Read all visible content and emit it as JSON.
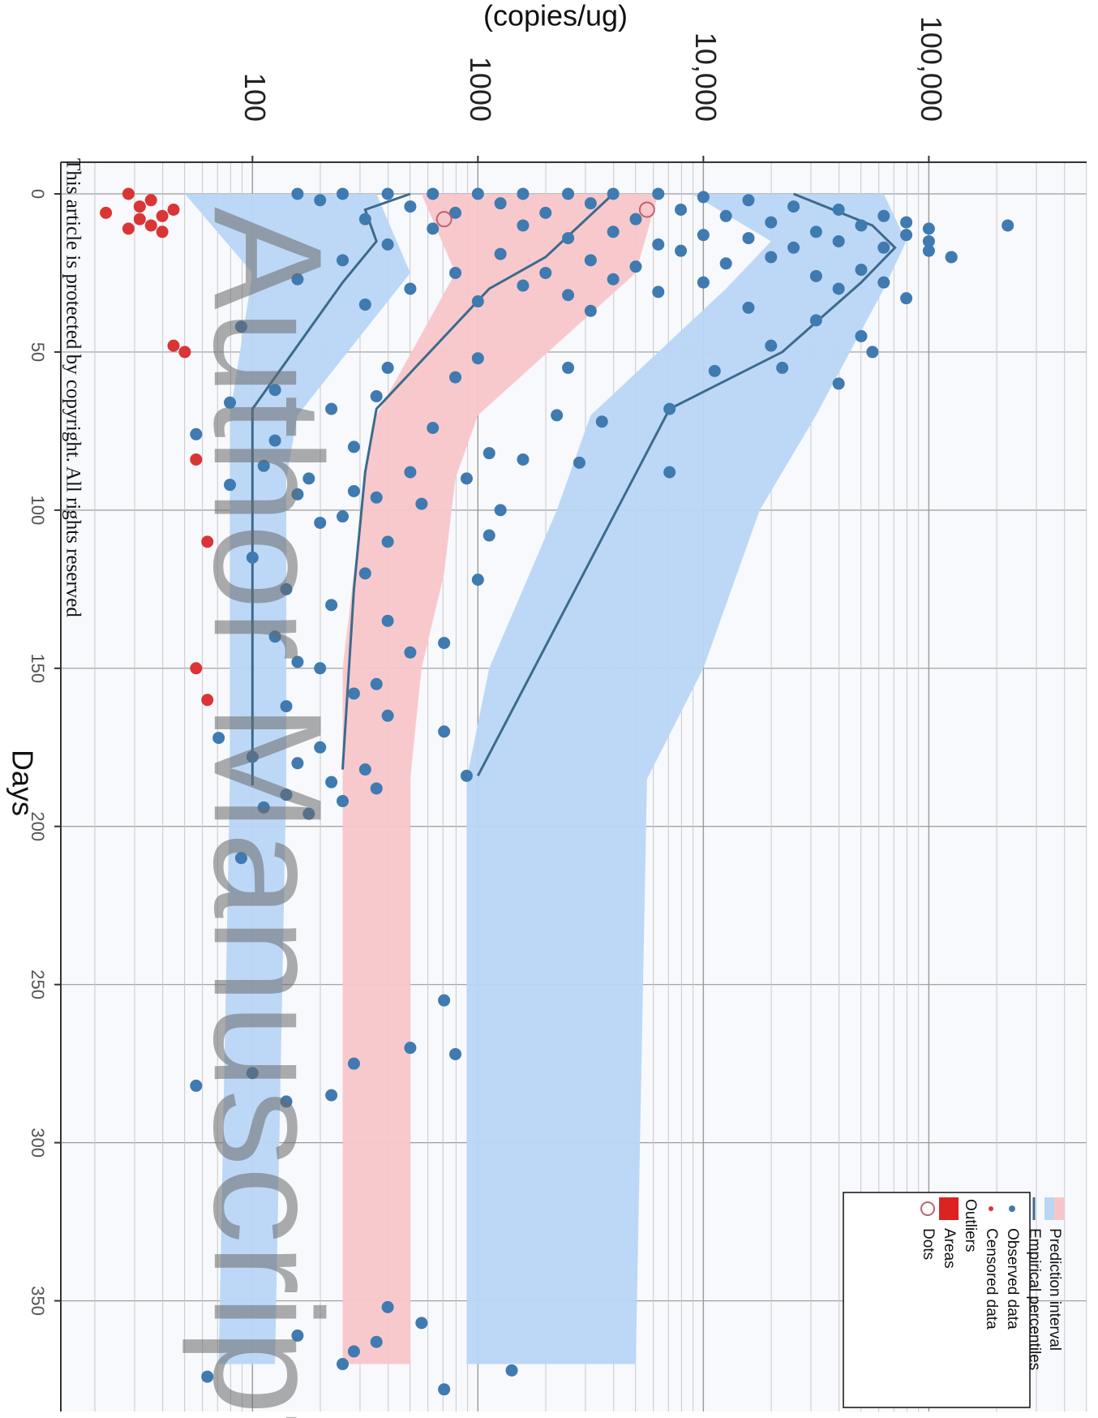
{
  "chart_data": {
    "type": "scatter",
    "title": "",
    "xlabel": "Days",
    "ylabel": "(copies/ug)",
    "xlim": [
      -10,
      385
    ],
    "ylim_log10": [
      1.15,
      5.7
    ],
    "y_scale": "log",
    "grid": true,
    "x_ticks": [
      0,
      50,
      100,
      150,
      200,
      250,
      300,
      350
    ],
    "x_tick_labels": [
      "0",
      "50",
      "100",
      "150",
      "200",
      "250",
      "300",
      "350"
    ],
    "y_tick_labels": [
      {
        "value": 100,
        "label": "100"
      },
      {
        "value": 1000,
        "label": "1000"
      },
      {
        "value": 10000,
        "label": "10,000"
      },
      {
        "value": 100000,
        "label": "100,000"
      }
    ],
    "colors": {
      "pi_blue": "#b9d6f5",
      "pi_red": "#f8c6c9",
      "percentile_line": "#3d6a8e",
      "observed": "#3f7ab0",
      "censored": "#d93535",
      "outlier_area": "#dd2222",
      "outlier_dot": "#c06070",
      "grid": "#9a9a9a",
      "plot_bg": "#f7f9fc"
    },
    "prediction_intervals": [
      {
        "name": "lower",
        "color": "blue",
        "x": [
          0,
          25,
          70,
          90,
          120,
          150,
          185,
          370
        ],
        "lo": [
          1.7,
          2.0,
          1.9,
          1.9,
          1.9,
          1.9,
          1.9,
          1.85
        ],
        "hi": [
          2.55,
          2.7,
          2.2,
          2.15,
          2.15,
          2.15,
          2.15,
          2.1
        ]
      },
      {
        "name": "median",
        "color": "red",
        "x": [
          0,
          25,
          70,
          90,
          120,
          150,
          185,
          370
        ],
        "lo": [
          2.75,
          2.9,
          2.55,
          2.5,
          2.45,
          2.4,
          2.4,
          2.4
        ],
        "hi": [
          3.8,
          3.7,
          3.0,
          2.9,
          2.85,
          2.75,
          2.7,
          2.7
        ]
      },
      {
        "name": "upper",
        "color": "blue",
        "x": [
          0,
          15,
          30,
          70,
          100,
          150,
          185,
          370
        ],
        "lo": [
          3.95,
          4.3,
          4.1,
          3.5,
          3.35,
          3.05,
          2.95,
          2.95
        ],
        "hi": [
          4.8,
          4.9,
          4.8,
          4.5,
          4.25,
          4.0,
          3.75,
          3.7
        ]
      }
    ],
    "empirical_percentiles": [
      {
        "name": "p10",
        "x": [
          0,
          5,
          15,
          28,
          68,
          88,
          130,
          187
        ],
        "y": [
          2.7,
          2.5,
          2.55,
          2.4,
          2.0,
          2.0,
          2.0,
          2.0
        ]
      },
      {
        "name": "p50",
        "x": [
          0,
          10,
          20,
          30,
          68,
          88,
          125,
          182
        ],
        "y": [
          3.6,
          3.45,
          3.3,
          3.05,
          2.55,
          2.5,
          2.45,
          2.4
        ]
      },
      {
        "name": "p90",
        "x": [
          0,
          10,
          17,
          28,
          50,
          68,
          184
        ],
        "y": [
          4.4,
          4.75,
          4.85,
          4.7,
          4.35,
          3.85,
          3.0
        ]
      }
    ],
    "observed_points": [
      [
        0,
        2.2
      ],
      [
        0,
        2.4
      ],
      [
        0,
        2.6
      ],
      [
        0,
        2.8
      ],
      [
        0,
        3.0
      ],
      [
        0,
        3.2
      ],
      [
        0,
        3.4
      ],
      [
        0,
        3.6
      ],
      [
        0,
        3.8
      ],
      [
        1,
        4.0
      ],
      [
        2,
        4.2
      ],
      [
        2,
        2.3
      ],
      [
        3,
        3.1
      ],
      [
        3,
        3.5
      ],
      [
        4,
        4.4
      ],
      [
        4,
        2.7
      ],
      [
        5,
        3.9
      ],
      [
        5,
        4.6
      ],
      [
        6,
        2.9
      ],
      [
        6,
        3.3
      ],
      [
        7,
        4.1
      ],
      [
        7,
        4.8
      ],
      [
        8,
        3.7
      ],
      [
        8,
        2.5
      ],
      [
        9,
        4.3
      ],
      [
        9,
        4.9
      ],
      [
        10,
        3.2
      ],
      [
        10,
        4.7
      ],
      [
        11,
        5.0
      ],
      [
        11,
        2.8
      ],
      [
        12,
        4.5
      ],
      [
        12,
        3.6
      ],
      [
        13,
        4.9
      ],
      [
        13,
        4.0
      ],
      [
        14,
        4.2
      ],
      [
        14,
        3.4
      ],
      [
        15,
        4.6
      ],
      [
        15,
        5.0
      ],
      [
        16,
        3.8
      ],
      [
        16,
        2.6
      ],
      [
        17,
        4.4
      ],
      [
        17,
        4.8
      ],
      [
        18,
        3.9
      ],
      [
        18,
        5.0
      ],
      [
        19,
        3.1
      ],
      [
        20,
        4.3
      ],
      [
        20,
        5.1
      ],
      [
        21,
        3.5
      ],
      [
        21,
        2.4
      ],
      [
        22,
        4.1
      ],
      [
        23,
        3.7
      ],
      [
        24,
        4.7
      ],
      [
        25,
        2.9
      ],
      [
        25,
        3.3
      ],
      [
        26,
        4.5
      ],
      [
        27,
        3.6
      ],
      [
        27,
        2.2
      ],
      [
        28,
        4.0
      ],
      [
        28,
        4.8
      ],
      [
        29,
        3.2
      ],
      [
        30,
        2.7
      ],
      [
        30,
        4.6
      ],
      [
        31,
        3.8
      ],
      [
        32,
        3.4
      ],
      [
        33,
        4.9
      ],
      [
        34,
        3.0
      ],
      [
        35,
        2.5
      ],
      [
        36,
        4.2
      ],
      [
        37,
        3.5
      ],
      [
        40,
        4.5
      ],
      [
        42,
        1.95
      ],
      [
        45,
        4.7
      ],
      [
        48,
        4.3
      ],
      [
        50,
        4.75
      ],
      [
        52,
        3.0
      ],
      [
        55,
        3.4
      ],
      [
        55,
        2.6
      ],
      [
        56,
        4.05
      ],
      [
        58,
        2.9
      ],
      [
        60,
        4.6
      ],
      [
        62,
        2.1
      ],
      [
        64,
        2.55
      ],
      [
        66,
        1.9
      ],
      [
        68,
        2.35
      ],
      [
        68,
        3.85
      ],
      [
        70,
        3.35
      ],
      [
        72,
        3.55
      ],
      [
        74,
        2.8
      ],
      [
        76,
        1.75
      ],
      [
        78,
        2.1
      ],
      [
        80,
        2.45
      ],
      [
        82,
        3.05
      ],
      [
        84,
        3.2
      ],
      [
        85,
        3.45
      ],
      [
        86,
        2.05
      ],
      [
        88,
        2.7
      ],
      [
        88,
        3.85
      ],
      [
        90,
        2.25
      ],
      [
        90,
        2.95
      ],
      [
        92,
        1.9
      ],
      [
        94,
        2.45
      ],
      [
        95,
        2.2
      ],
      [
        96,
        2.55
      ],
      [
        98,
        2.75
      ],
      [
        100,
        3.1
      ],
      [
        102,
        2.4
      ],
      [
        104,
        2.3
      ],
      [
        108,
        3.05
      ],
      [
        110,
        2.6
      ],
      [
        115,
        2.0
      ],
      [
        120,
        2.5
      ],
      [
        122,
        3.0
      ],
      [
        125,
        2.15
      ],
      [
        130,
        2.35
      ],
      [
        135,
        2.6
      ],
      [
        140,
        2.1
      ],
      [
        142,
        2.85
      ],
      [
        145,
        2.7
      ],
      [
        148,
        2.2
      ],
      [
        150,
        2.3
      ],
      [
        155,
        2.55
      ],
      [
        158,
        2.45
      ],
      [
        162,
        2.15
      ],
      [
        165,
        2.6
      ],
      [
        170,
        2.85
      ],
      [
        172,
        1.85
      ],
      [
        175,
        2.3
      ],
      [
        178,
        2.0
      ],
      [
        180,
        2.2
      ],
      [
        182,
        2.5
      ],
      [
        184,
        2.95
      ],
      [
        186,
        2.35
      ],
      [
        188,
        2.55
      ],
      [
        190,
        2.15
      ],
      [
        192,
        2.4
      ],
      [
        194,
        2.05
      ],
      [
        196,
        2.25
      ],
      [
        210,
        1.95
      ],
      [
        255,
        2.85
      ],
      [
        270,
        2.7
      ],
      [
        272,
        2.9
      ],
      [
        275,
        2.45
      ],
      [
        278,
        2.0
      ],
      [
        282,
        1.75
      ],
      [
        285,
        2.35
      ],
      [
        287,
        2.15
      ],
      [
        352,
        2.6
      ],
      [
        357,
        2.75
      ],
      [
        361,
        2.2
      ],
      [
        363,
        2.55
      ],
      [
        366,
        2.45
      ],
      [
        370,
        2.4
      ],
      [
        372,
        3.15
      ],
      [
        374,
        1.8
      ],
      [
        378,
        2.85
      ],
      [
        10,
        5.35
      ],
      [
        20,
        5.1
      ],
      [
        55,
        4.35
      ]
    ],
    "censored_points": [
      [
        0,
        1.45
      ],
      [
        2,
        1.55
      ],
      [
        4,
        1.5
      ],
      [
        5,
        1.65
      ],
      [
        6,
        1.35
      ],
      [
        7,
        1.6
      ],
      [
        8,
        1.5
      ],
      [
        10,
        1.55
      ],
      [
        11,
        1.45
      ],
      [
        12,
        1.6
      ],
      [
        48,
        1.65
      ],
      [
        50,
        1.7
      ],
      [
        84,
        1.75
      ],
      [
        110,
        1.8
      ],
      [
        150,
        1.75
      ],
      [
        160,
        1.8
      ]
    ],
    "outlier_dots": [
      [
        5,
        3.75
      ],
      [
        8,
        2.85
      ]
    ],
    "legend": {
      "position": "bottom-right",
      "items": [
        {
          "kind": "band",
          "label": "Prediction interval"
        },
        {
          "kind": "line",
          "label": "Empirical percentiles"
        },
        {
          "kind": "dot",
          "label": "Observed data"
        },
        {
          "kind": "censored",
          "label": "Censored data"
        },
        {
          "kind": "header",
          "label": "Outliers"
        },
        {
          "kind": "area",
          "label": "Areas"
        },
        {
          "kind": "ring",
          "label": "Dots"
        }
      ]
    }
  },
  "copyright_text": "This article is protected by copyright. All rights reserved",
  "watermark_text": "Author Manuscript"
}
